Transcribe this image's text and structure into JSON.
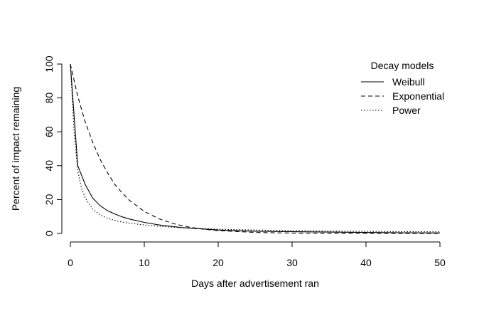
{
  "chart_data": {
    "type": "line",
    "title": "",
    "xlabel": "Days after advertisement ran",
    "ylabel": "Percent of impact remaining",
    "xlim": [
      0,
      50
    ],
    "ylim": [
      0,
      100
    ],
    "xticks": [
      "0",
      "10",
      "20",
      "30",
      "40",
      "50"
    ],
    "yticks": [
      "0",
      "20",
      "40",
      "60",
      "80",
      "100"
    ],
    "grid": false,
    "legend": {
      "title": "Decay models",
      "placement": "top-right"
    },
    "series": [
      {
        "name": "Weibull",
        "dash": "solid",
        "x": [
          0,
          0.5,
          1,
          2,
          3,
          4,
          5,
          6,
          7,
          8,
          10,
          12,
          15,
          20,
          25,
          30,
          35,
          40,
          45,
          50
        ],
        "y": [
          100,
          70,
          40,
          29,
          21,
          16.5,
          13.5,
          11.5,
          9.8,
          8.5,
          6.5,
          5.0,
          3.5,
          2.0,
          1.3,
          1.0,
          0.8,
          0.6,
          0.4,
          0.3
        ]
      },
      {
        "name": "Exponential",
        "dash": "dashed",
        "x": [
          0,
          1,
          2,
          3,
          4,
          5,
          6,
          7,
          8,
          10,
          12,
          14,
          16,
          18,
          20,
          25,
          30,
          35,
          40,
          45,
          50
        ],
        "y": [
          100,
          81,
          66,
          54,
          44,
          36,
          29,
          24,
          19.5,
          13,
          8.6,
          5.7,
          3.8,
          2.5,
          1.7,
          0.6,
          0.2,
          0.1,
          0.05,
          0.02,
          0.01
        ]
      },
      {
        "name": "Power",
        "dash": "dotted",
        "x": [
          0,
          0.5,
          1,
          1.5,
          2,
          3,
          4,
          5,
          6,
          7,
          8,
          10,
          12,
          15,
          20,
          25,
          30,
          35,
          40,
          45,
          50
        ],
        "y": [
          100,
          60,
          37,
          27,
          21,
          14.5,
          11,
          9,
          7.7,
          6.7,
          6.0,
          5.0,
          4.2,
          3.4,
          2.5,
          2.0,
          1.7,
          1.4,
          1.2,
          1.05,
          0.95
        ]
      }
    ]
  }
}
